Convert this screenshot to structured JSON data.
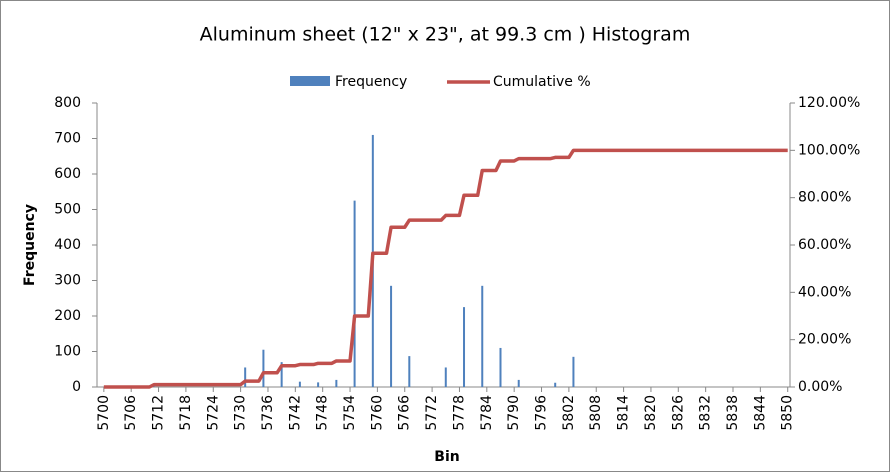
{
  "chart_data": {
    "type": "histogram",
    "title": "Aluminum sheet (12\" x 23\", at 99.3 cm ) Histogram",
    "x_label": "Bin",
    "y_label": "Frequency",
    "xlim": [
      5699,
      5850
    ],
    "xticks": [
      5700,
      5706,
      5712,
      5718,
      5724,
      5730,
      5736,
      5742,
      5748,
      5754,
      5760,
      5766,
      5772,
      5778,
      5784,
      5790,
      5796,
      5802,
      5808,
      5814,
      5820,
      5826,
      5832,
      5838,
      5844,
      5850
    ],
    "ylim": [
      0,
      800
    ],
    "yticks": [
      0,
      100,
      200,
      300,
      400,
      500,
      600,
      700,
      800
    ],
    "y2lim": [
      0,
      120
    ],
    "y2ticks": [
      {
        "value": 0,
        "label": "0.00%"
      },
      {
        "value": 20,
        "label": "20.00%"
      },
      {
        "value": 40,
        "label": "40.00%"
      },
      {
        "value": 60,
        "label": "60.00%"
      },
      {
        "value": 80,
        "label": "80.00%"
      },
      {
        "value": 100,
        "label": "100.00%"
      },
      {
        "value": 120,
        "label": "120.00%"
      }
    ],
    "series": [
      {
        "name": "Frequency",
        "color": "#4f81bd",
        "x": [
          5711,
          5731,
          5735,
          5739,
          5743,
          5747,
          5751,
          5755,
          5759,
          5763,
          5767,
          5775,
          5779,
          5783,
          5787,
          5791,
          5799,
          5803
        ],
        "values": [
          2,
          55,
          105,
          70,
          15,
          13,
          20,
          525,
          710,
          285,
          87,
          55,
          225,
          285,
          110,
          20,
          12,
          85
        ]
      },
      {
        "name": "Cumulative %",
        "color": "#c0504d",
        "axis": "y2",
        "x": [
          5700,
          5710,
          5711,
          5730,
          5731,
          5734,
          5735,
          5738,
          5739,
          5742,
          5743,
          5746,
          5747,
          5750,
          5751,
          5754,
          5755,
          5758,
          5759,
          5762,
          5763,
          5766,
          5767,
          5774,
          5775,
          5778,
          5779,
          5782,
          5783,
          5786,
          5787,
          5790,
          5791,
          5798,
          5799,
          5802,
          5803,
          5850
        ],
        "values": [
          0,
          0,
          1,
          1,
          2.5,
          2.5,
          6,
          6,
          9,
          9,
          9.5,
          9.5,
          10,
          10,
          11,
          11,
          30,
          30,
          56.5,
          56.5,
          67.5,
          67.5,
          70.5,
          70.5,
          72.5,
          72.5,
          81,
          81,
          91.5,
          91.5,
          95.5,
          95.5,
          96.5,
          96.5,
          97,
          97,
          100,
          100
        ]
      }
    ]
  }
}
